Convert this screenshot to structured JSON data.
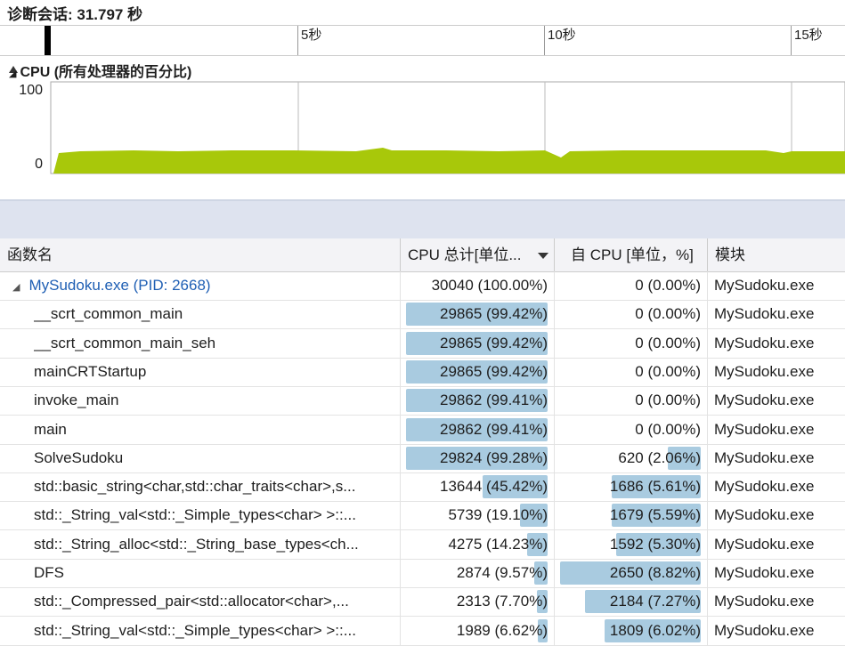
{
  "header": {
    "title": "诊断会话: 31.797 秒"
  },
  "timeline": {
    "ticks": [
      "5秒",
      "10秒",
      "15秒"
    ]
  },
  "cpu": {
    "title": "CPU (所有处理器的百分比)",
    "axis_max": "100",
    "axis_min": "0"
  },
  "table": {
    "columns": [
      "函数名",
      "CPU 总计[单位...",
      "自 CPU [单位，%]",
      "模块"
    ],
    "rows": [
      {
        "name": "MySudoku.exe (PID: 2668)",
        "total": "30040 (100.00%)",
        "self": "0 (0.00%)",
        "module": "MySudoku.exe"
      },
      {
        "name": "__scrt_common_main",
        "total": "29865 (99.42%)",
        "self": "0 (0.00%)",
        "module": "MySudoku.exe"
      },
      {
        "name": "__scrt_common_main_seh",
        "total": "29865 (99.42%)",
        "self": "0 (0.00%)",
        "module": "MySudoku.exe"
      },
      {
        "name": "mainCRTStartup",
        "total": "29865 (99.42%)",
        "self": "0 (0.00%)",
        "module": "MySudoku.exe"
      },
      {
        "name": "invoke_main",
        "total": "29862 (99.41%)",
        "self": "0 (0.00%)",
        "module": "MySudoku.exe"
      },
      {
        "name": "main",
        "total": "29862 (99.41%)",
        "self": "0 (0.00%)",
        "module": "MySudoku.exe"
      },
      {
        "name": "SolveSudoku",
        "total": "29824 (99.28%)",
        "self": "620 (2.06%)",
        "module": "MySudoku.exe"
      },
      {
        "name": "std::basic_string<char,std::char_traits<char>,s...",
        "total": "13644 (45.42%)",
        "self": "1686 (5.61%)",
        "module": "MySudoku.exe"
      },
      {
        "name": "std::_String_val<std::_Simple_types<char> >::...",
        "total": "5739 (19.10%)",
        "self": "1679 (5.59%)",
        "module": "MySudoku.exe"
      },
      {
        "name": "std::_String_alloc<std::_String_base_types<ch...",
        "total": "4275 (14.23%)",
        "self": "1592 (5.30%)",
        "module": "MySudoku.exe"
      },
      {
        "name": "DFS",
        "total": "2874 (9.57%)",
        "self": "2650 (8.82%)",
        "module": "MySudoku.exe"
      },
      {
        "name": "std::_Compressed_pair<std::allocator<char>,...",
        "total": "2313 (7.70%)",
        "self": "2184 (7.27%)",
        "module": "MySudoku.exe"
      },
      {
        "name": "std::_String_val<std::_Simple_types<char> >::...",
        "total": "1989 (6.62%)",
        "self": "1809 (6.02%)",
        "module": "MySudoku.exe"
      }
    ]
  }
}
